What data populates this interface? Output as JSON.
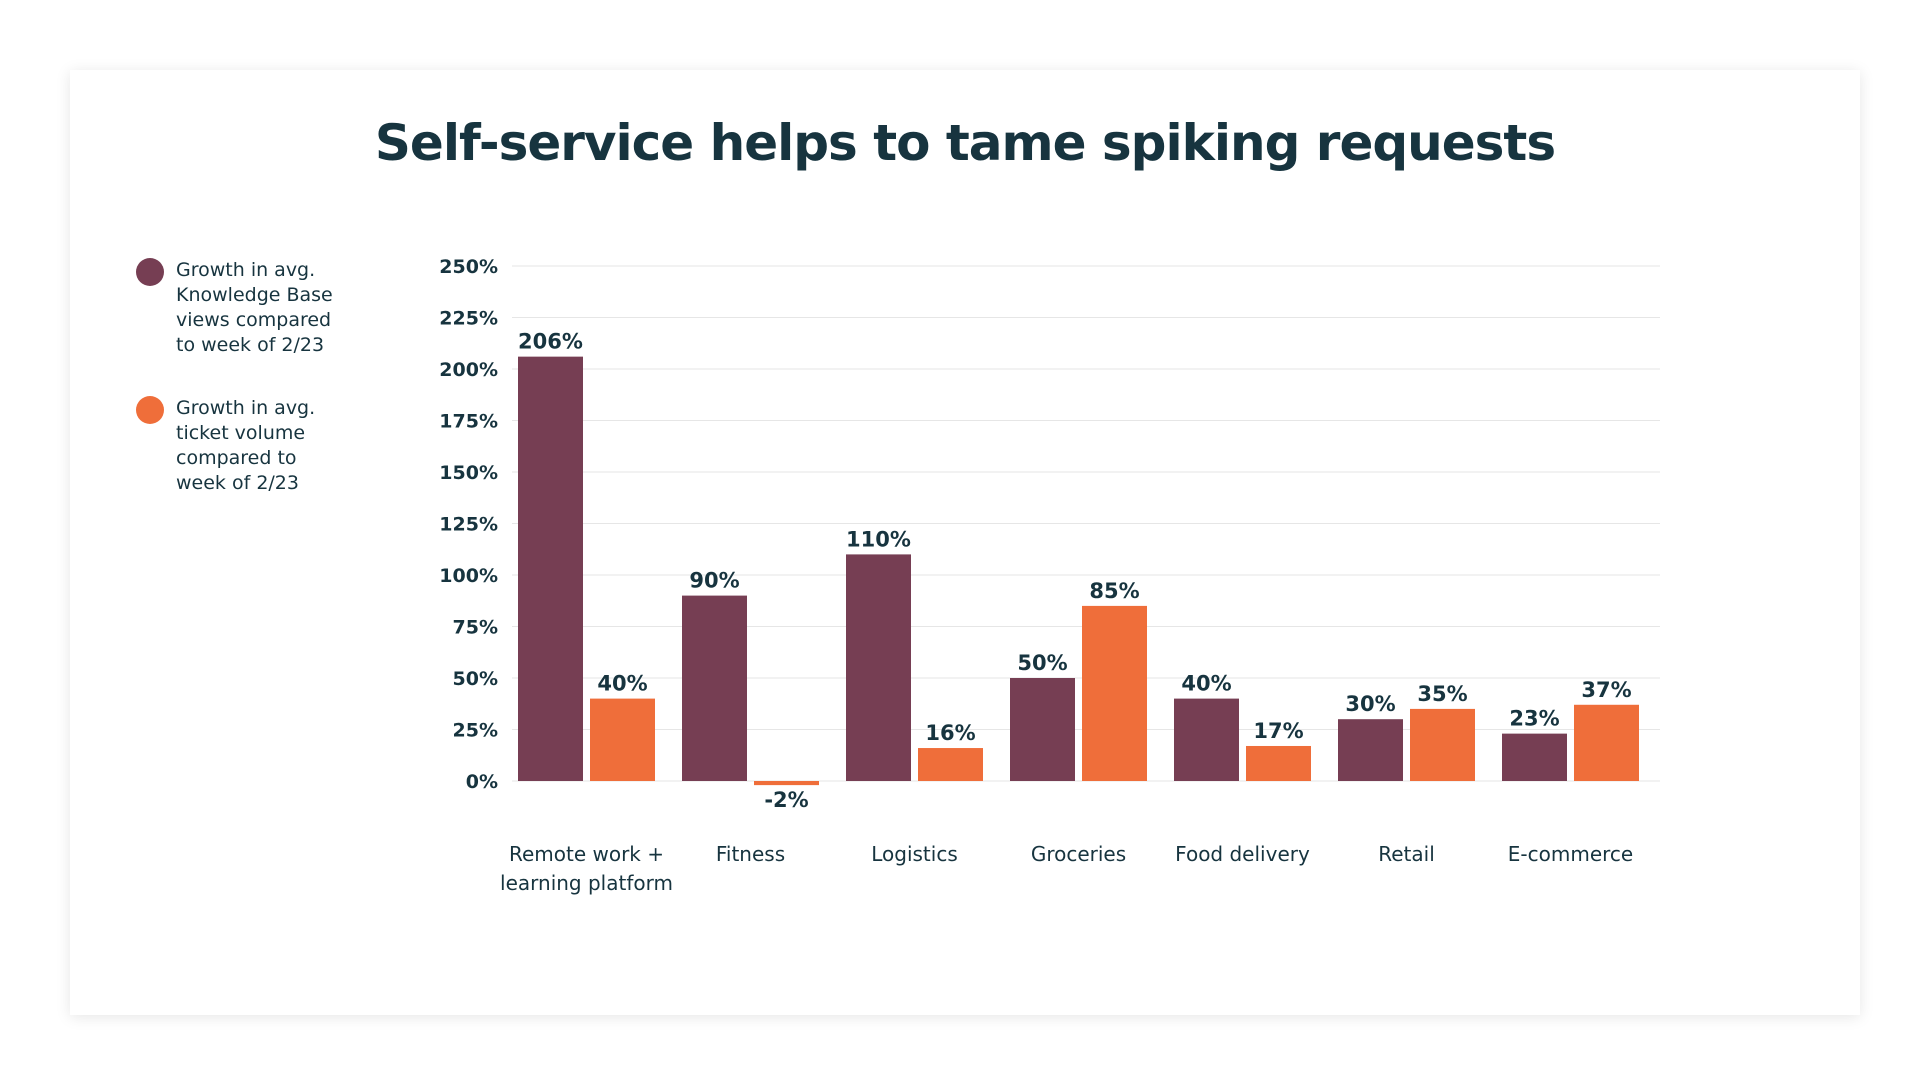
{
  "title": "Self-service helps to tame spiking requests",
  "legend": [
    {
      "lines": [
        "Growth in avg.",
        "Knowledge Base",
        "views compared",
        "to week of 2/23"
      ],
      "color": "#763e53"
    },
    {
      "lines": [
        "Growth in avg.",
        "ticket volume",
        "compared to",
        "week of 2/23"
      ],
      "color": "#ef6e3a"
    }
  ],
  "chart_data": {
    "type": "bar",
    "title": "Self-service helps to tame spiking requests",
    "categories": [
      [
        "Remote work +",
        "learning platform"
      ],
      [
        "Fitness"
      ],
      [
        "Logistics"
      ],
      [
        "Groceries"
      ],
      [
        "Food delivery"
      ],
      [
        "Retail"
      ],
      [
        "E-commerce"
      ]
    ],
    "series": [
      {
        "name": "Growth in avg. Knowledge Base views compared to week of 2/23",
        "color": "#763e53",
        "values": [
          206,
          90,
          110,
          50,
          40,
          30,
          23
        ],
        "labels": [
          "206%",
          "90%",
          "110%",
          "50%",
          "40%",
          "30%",
          "23%"
        ]
      },
      {
        "name": "Growth in avg. ticket volume compared to week of 2/23",
        "color": "#ef6e3a",
        "values": [
          40,
          -2,
          16,
          85,
          17,
          35,
          37
        ],
        "labels": [
          "40%",
          "-2%",
          "16%",
          "85%",
          "17%",
          "35%",
          "37%"
        ]
      }
    ],
    "yticks": [
      0,
      25,
      50,
      75,
      100,
      125,
      150,
      175,
      200,
      225,
      250
    ],
    "ytick_labels": [
      "0%",
      "25%",
      "50%",
      "75%",
      "100%",
      "125%",
      "150%",
      "175%",
      "200%",
      "225%",
      "250%"
    ],
    "ylim": [
      0,
      250
    ],
    "grid": true,
    "legend_position": "left"
  }
}
